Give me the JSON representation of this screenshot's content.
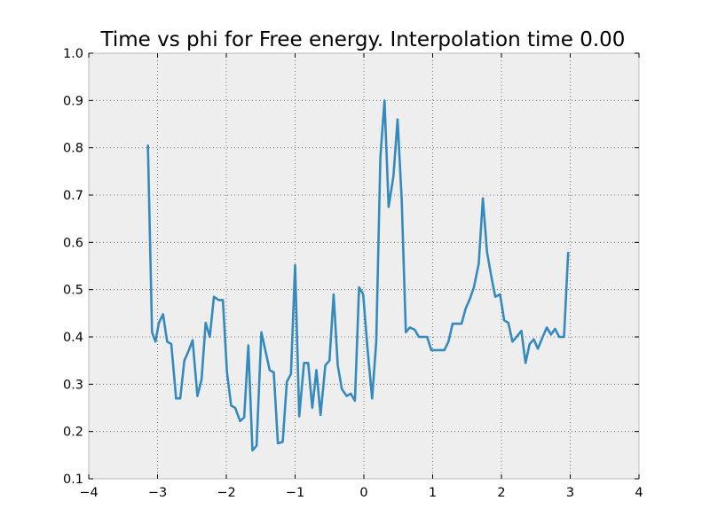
{
  "chart_data": {
    "type": "line",
    "title": "Time vs phi for Free energy. Interpolation time 0.00",
    "xlabel": "",
    "ylabel": "",
    "xlim": [
      -4,
      4
    ],
    "ylim": [
      0.1,
      1.0
    ],
    "x_ticks": [
      "−4",
      "−3",
      "−2",
      "−1",
      "0",
      "1",
      "2",
      "3",
      "4"
    ],
    "y_ticks": [
      "0.1",
      "0.2",
      "0.3",
      "0.4",
      "0.5",
      "0.6",
      "0.7",
      "0.8",
      "0.9",
      "1.0"
    ],
    "grid": true,
    "colors": {
      "line": "#348abd",
      "background": "#eeeeee",
      "frame": "#bcbcbc"
    },
    "series": [
      {
        "x": [
          -3.14,
          -3.08,
          -3.03,
          -2.98,
          -2.92,
          -2.86,
          -2.8,
          -2.73,
          -2.67,
          -2.61,
          -2.55,
          -2.49,
          -2.42,
          -2.36,
          -2.3,
          -2.24,
          -2.18,
          -2.11,
          -2.05,
          -1.99,
          -1.93,
          -1.87,
          -1.8,
          -1.74,
          -1.68,
          -1.62,
          -1.56,
          -1.49,
          -1.43,
          -1.37,
          -1.31,
          -1.25,
          -1.18,
          -1.12,
          -1.06,
          -1.0,
          -0.94,
          -0.87,
          -0.81,
          -0.75,
          -0.69,
          -0.63,
          -0.56,
          -0.5,
          -0.44,
          -0.38,
          -0.32,
          -0.25,
          -0.19,
          -0.13,
          -0.07,
          -0.01,
          0.05,
          0.12,
          0.18,
          0.24,
          0.3,
          0.36,
          0.43,
          0.49,
          0.55,
          0.61,
          0.67,
          0.74,
          0.8,
          0.86,
          0.92,
          0.98,
          1.05,
          1.11,
          1.17,
          1.23,
          1.29,
          1.36,
          1.42,
          1.48,
          1.54,
          1.6,
          1.67,
          1.73,
          1.79,
          1.85,
          1.91,
          1.98,
          2.04,
          2.1,
          2.16,
          2.22,
          2.29,
          2.35,
          2.41,
          2.47,
          2.53,
          2.6,
          2.66,
          2.72,
          2.78,
          2.84,
          2.91,
          2.97,
          3.03,
          3.09,
          3.14
        ],
        "y": [
          0.805,
          0.41,
          0.39,
          0.43,
          0.448,
          0.39,
          0.385,
          0.27,
          0.27,
          0.35,
          0.37,
          0.393,
          0.275,
          0.31,
          0.43,
          0.4,
          0.485,
          0.478,
          0.478,
          0.325,
          0.255,
          0.25,
          0.222,
          0.23,
          0.382,
          0.16,
          0.17,
          0.41,
          0.37,
          0.33,
          0.325,
          0.175,
          0.178,
          0.305,
          0.322,
          0.552,
          0.232,
          0.345,
          0.345,
          0.25,
          0.33,
          0.235,
          0.34,
          0.35,
          0.49,
          0.34,
          0.29,
          0.275,
          0.28,
          0.265,
          0.505,
          0.49,
          0.38,
          0.27,
          0.39,
          0.78,
          0.9,
          0.675,
          0.74,
          0.86,
          0.69,
          0.41,
          0.42,
          0.415,
          0.4,
          0.4,
          0.4,
          0.372,
          0.372,
          0.372,
          0.372,
          0.39,
          0.428,
          0.428,
          0.428,
          0.46,
          0.48,
          0.505,
          0.555,
          0.693,
          0.58,
          0.53,
          0.485,
          0.49,
          0.435,
          0.43,
          0.39,
          0.4,
          0.413,
          0.345,
          0.385,
          0.395,
          0.375,
          0.4,
          0.42,
          0.405,
          0.417,
          0.4,
          0.4,
          0.578,
          null,
          null,
          null
        ]
      }
    ]
  }
}
